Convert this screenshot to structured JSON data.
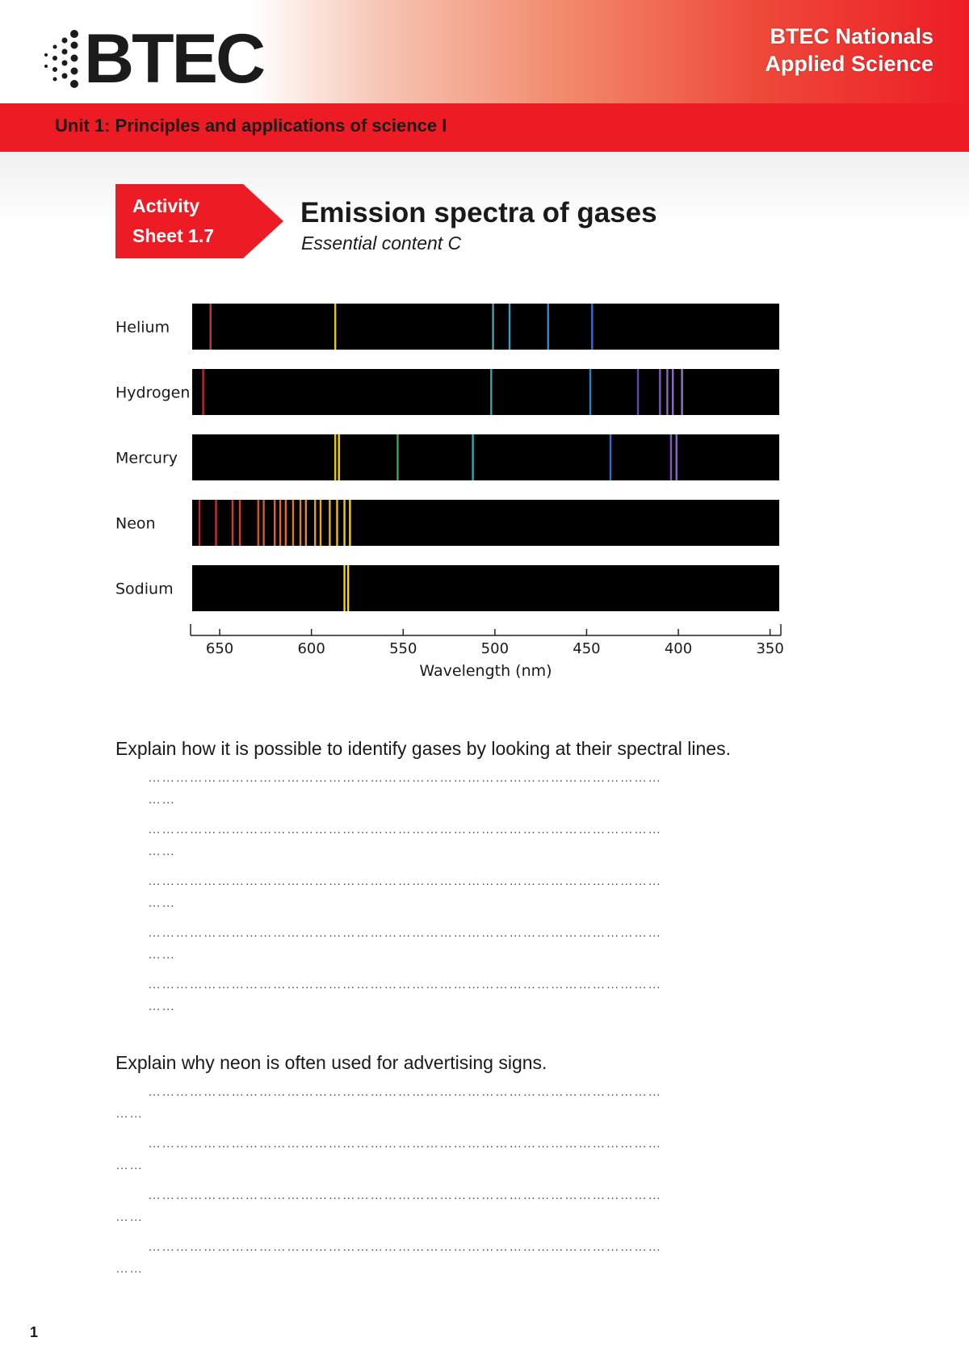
{
  "header": {
    "logo_text": "BTEC",
    "brand_line1": "BTEC Nationals",
    "brand_line2": "Applied Science",
    "unit_title": "Unit 1: Principles and applications of science I"
  },
  "activity": {
    "label_line1": "Activity",
    "label_line2": "Sheet 1.7",
    "title": "Emission spectra of gases",
    "subtitle": "Essential content C"
  },
  "chart_data": {
    "type": "emission-spectra",
    "xlabel": "Wavelength (nm)",
    "x_ticks": [
      650,
      600,
      550,
      500,
      450,
      400,
      350
    ],
    "xlim": [
      665,
      345
    ],
    "series": [
      {
        "name": "Helium",
        "lines": [
          {
            "nm": 655,
            "color": "#c0392b"
          },
          {
            "nm": 587,
            "color": "#e6c21a"
          },
          {
            "nm": 501,
            "color": "#3aa3b5"
          },
          {
            "nm": 492,
            "color": "#3a9fc4"
          },
          {
            "nm": 471,
            "color": "#2e8fd0"
          },
          {
            "nm": 447,
            "color": "#2b6fd1"
          }
        ]
      },
      {
        "name": "Hydrogen",
        "lines": [
          {
            "nm": 659,
            "color": "#c0262b"
          },
          {
            "nm": 502,
            "color": "#35a6b8"
          },
          {
            "nm": 448,
            "color": "#2b7fd1"
          },
          {
            "nm": 422,
            "color": "#5a4fb0"
          },
          {
            "nm": 410,
            "color": "#7a5bbf"
          },
          {
            "nm": 406,
            "color": "#8a62c6"
          },
          {
            "nm": 403,
            "color": "#926ac9"
          },
          {
            "nm": 398,
            "color": "#9b74cc"
          }
        ]
      },
      {
        "name": "Mercury",
        "lines": [
          {
            "nm": 587,
            "color": "#e6c21a"
          },
          {
            "nm": 585,
            "color": "#f0d21e"
          },
          {
            "nm": 553,
            "color": "#3caa4a"
          },
          {
            "nm": 512,
            "color": "#33a6b0"
          },
          {
            "nm": 437,
            "color": "#2b6fd1"
          },
          {
            "nm": 404,
            "color": "#7a5bbf"
          },
          {
            "nm": 401,
            "color": "#8a62c6"
          }
        ]
      },
      {
        "name": "Neon",
        "lines": [
          {
            "nm": 661,
            "color": "#c0262b"
          },
          {
            "nm": 652,
            "color": "#c82f2a"
          },
          {
            "nm": 643,
            "color": "#cc3a2a"
          },
          {
            "nm": 639,
            "color": "#d0402a"
          },
          {
            "nm": 629,
            "color": "#d4522a"
          },
          {
            "nm": 626,
            "color": "#d85a2a"
          },
          {
            "nm": 620,
            "color": "#dc6228"
          },
          {
            "nm": 617,
            "color": "#de6828"
          },
          {
            "nm": 614,
            "color": "#e06e28"
          },
          {
            "nm": 610,
            "color": "#e27626"
          },
          {
            "nm": 606,
            "color": "#e48024"
          },
          {
            "nm": 603,
            "color": "#e68a24"
          },
          {
            "nm": 598,
            "color": "#e89822"
          },
          {
            "nm": 595,
            "color": "#eaa420"
          },
          {
            "nm": 590,
            "color": "#ecb01e"
          },
          {
            "nm": 586,
            "color": "#eebc1e"
          },
          {
            "nm": 582,
            "color": "#f0c81e"
          },
          {
            "nm": 579,
            "color": "#f2d41e"
          }
        ]
      },
      {
        "name": "Sodium",
        "lines": [
          {
            "nm": 582,
            "color": "#f2d31e"
          },
          {
            "nm": 580,
            "color": "#f5dc22"
          }
        ]
      }
    ]
  },
  "questions": [
    {
      "text": "Explain how it is possible to identify gases by looking at their spectral lines.",
      "answer_lines": [
        {
          "main": "…………………………………………………………………………………………………",
          "tail": "……"
        },
        {
          "main": "…………………………………………………………………………………………………",
          "tail": "……"
        },
        {
          "main": "…………………………………………………………………………………………………",
          "tail": "……"
        },
        {
          "main": "…………………………………………………………………………………………………",
          "tail": "……"
        },
        {
          "main": "…………………………………………………………………………………………………",
          "tail": "……"
        }
      ]
    },
    {
      "text": "Explain why neon is often used for advertising signs.",
      "answer_lines": [
        {
          "main": "…………………………………………………………………………………………………",
          "tail": "……"
        },
        {
          "main": "…………………………………………………………………………………………………",
          "tail": "……"
        },
        {
          "main": "…………………………………………………………………………………………………",
          "tail": "……"
        },
        {
          "main": "…………………………………………………………………………………………………",
          "tail": "……"
        }
      ]
    }
  ],
  "page_number": "1"
}
